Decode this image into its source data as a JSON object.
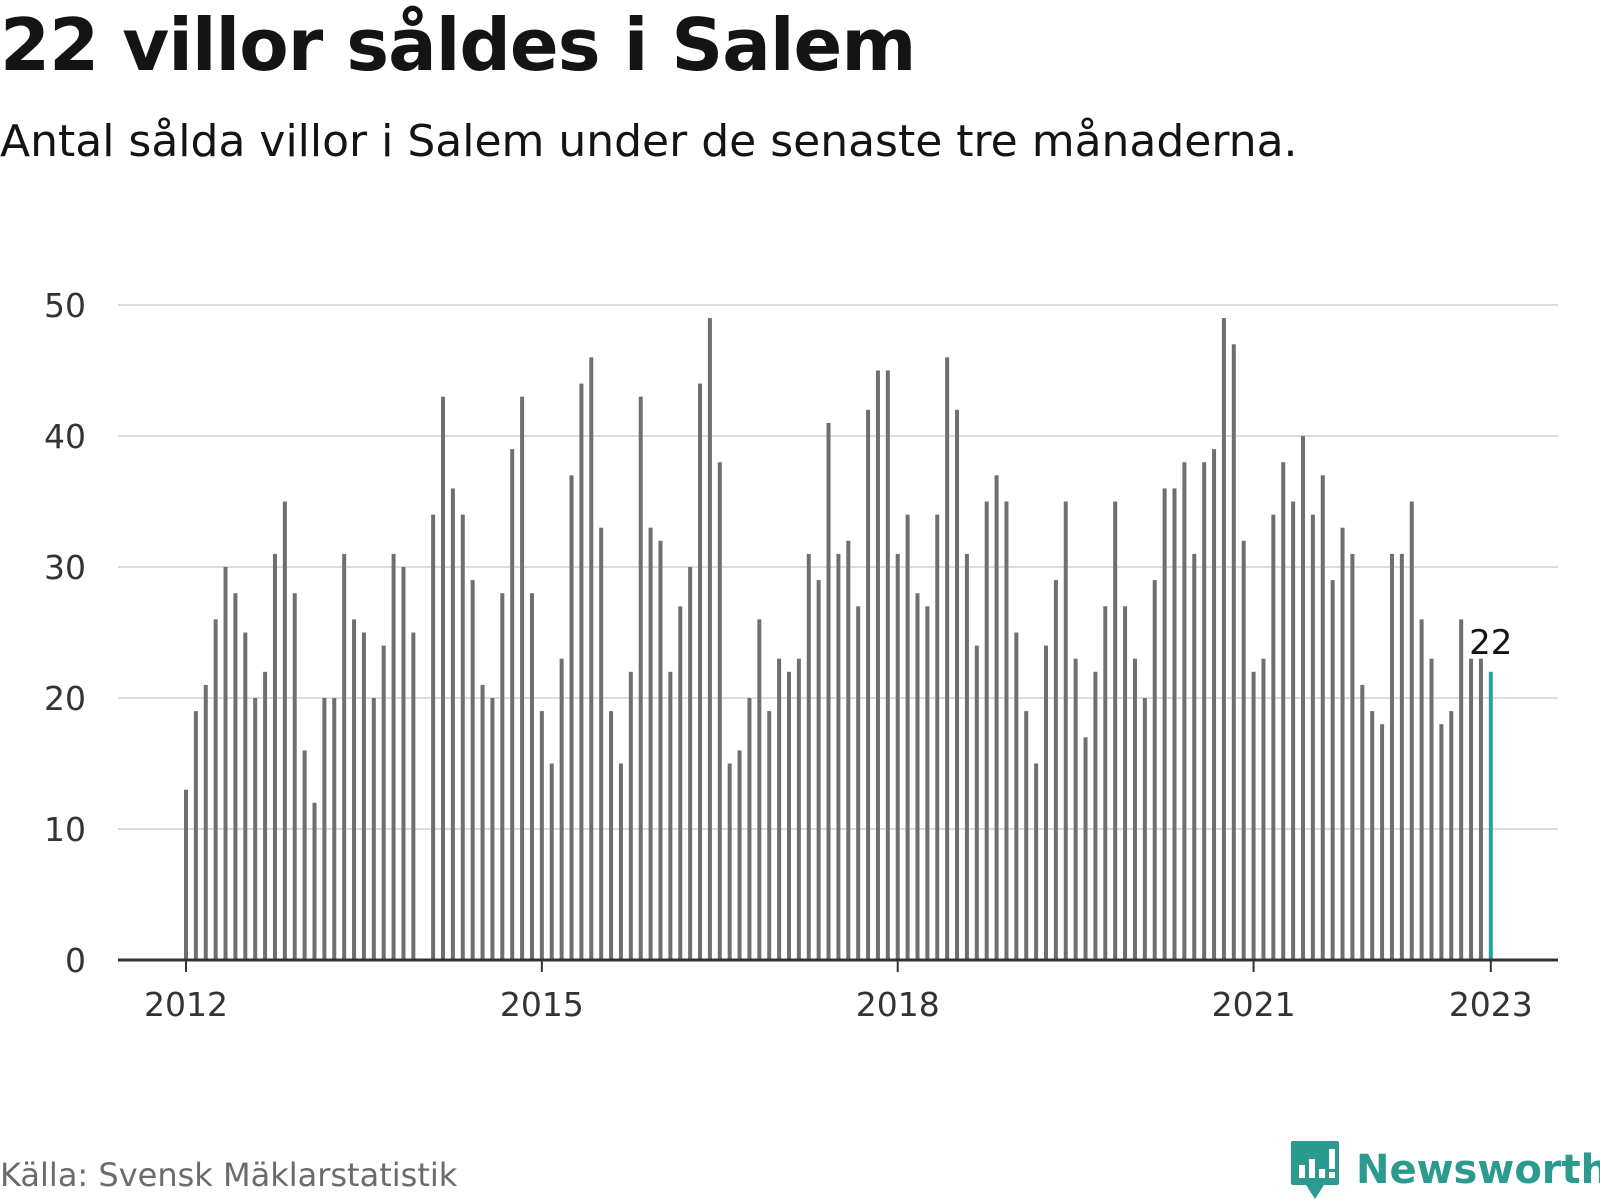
{
  "title": "22 villor såldes i Salem",
  "subtitle": "Antal sålda villor i Salem under de senaste tre månaderna.",
  "source": "Källa: Svensk Mäklarstatistik",
  "brand": {
    "name": "Newsworthy",
    "icon": "newsworthy-chart-bubble-icon"
  },
  "colors": {
    "bar": "#6f6f6f",
    "highlight": "#26a69a",
    "grid": "#dcdcdc",
    "axis": "#333333",
    "text": "#141414",
    "brand": "#2b9a8f"
  },
  "chart_data": {
    "type": "bar",
    "xlabel": "",
    "ylabel": "",
    "ylim": [
      0,
      50
    ],
    "yticks": [
      0,
      10,
      20,
      30,
      40,
      50
    ],
    "xticks": [
      "2012",
      "2015",
      "2018",
      "2021",
      "2023"
    ],
    "grid": true,
    "start": "2012-01",
    "end": "2023-01",
    "values": [
      13,
      19,
      21,
      26,
      30,
      28,
      25,
      20,
      22,
      31,
      35,
      28,
      16,
      12,
      20,
      20,
      31,
      26,
      25,
      20,
      24,
      31,
      30,
      25,
      null,
      34,
      43,
      36,
      34,
      29,
      21,
      20,
      28,
      39,
      43,
      28,
      19,
      15,
      23,
      37,
      44,
      46,
      33,
      19,
      15,
      22,
      43,
      33,
      32,
      22,
      27,
      30,
      44,
      49,
      38,
      15,
      16,
      20,
      26,
      19,
      23,
      22,
      23,
      31,
      29,
      41,
      31,
      32,
      27,
      42,
      45,
      45,
      31,
      34,
      28,
      27,
      34,
      46,
      42,
      31,
      24,
      35,
      37,
      35,
      25,
      19,
      15,
      24,
      29,
      35,
      23,
      17,
      22,
      27,
      35,
      27,
      23,
      20,
      29,
      36,
      36,
      38,
      31,
      38,
      39,
      49,
      47,
      32,
      22,
      23,
      34,
      38,
      35,
      40,
      34,
      37,
      29,
      33,
      31,
      21,
      19,
      18,
      31,
      31,
      35,
      26,
      23,
      18,
      19,
      26,
      23,
      23,
      22
    ],
    "highlight": {
      "label": "22",
      "value": 22
    }
  }
}
